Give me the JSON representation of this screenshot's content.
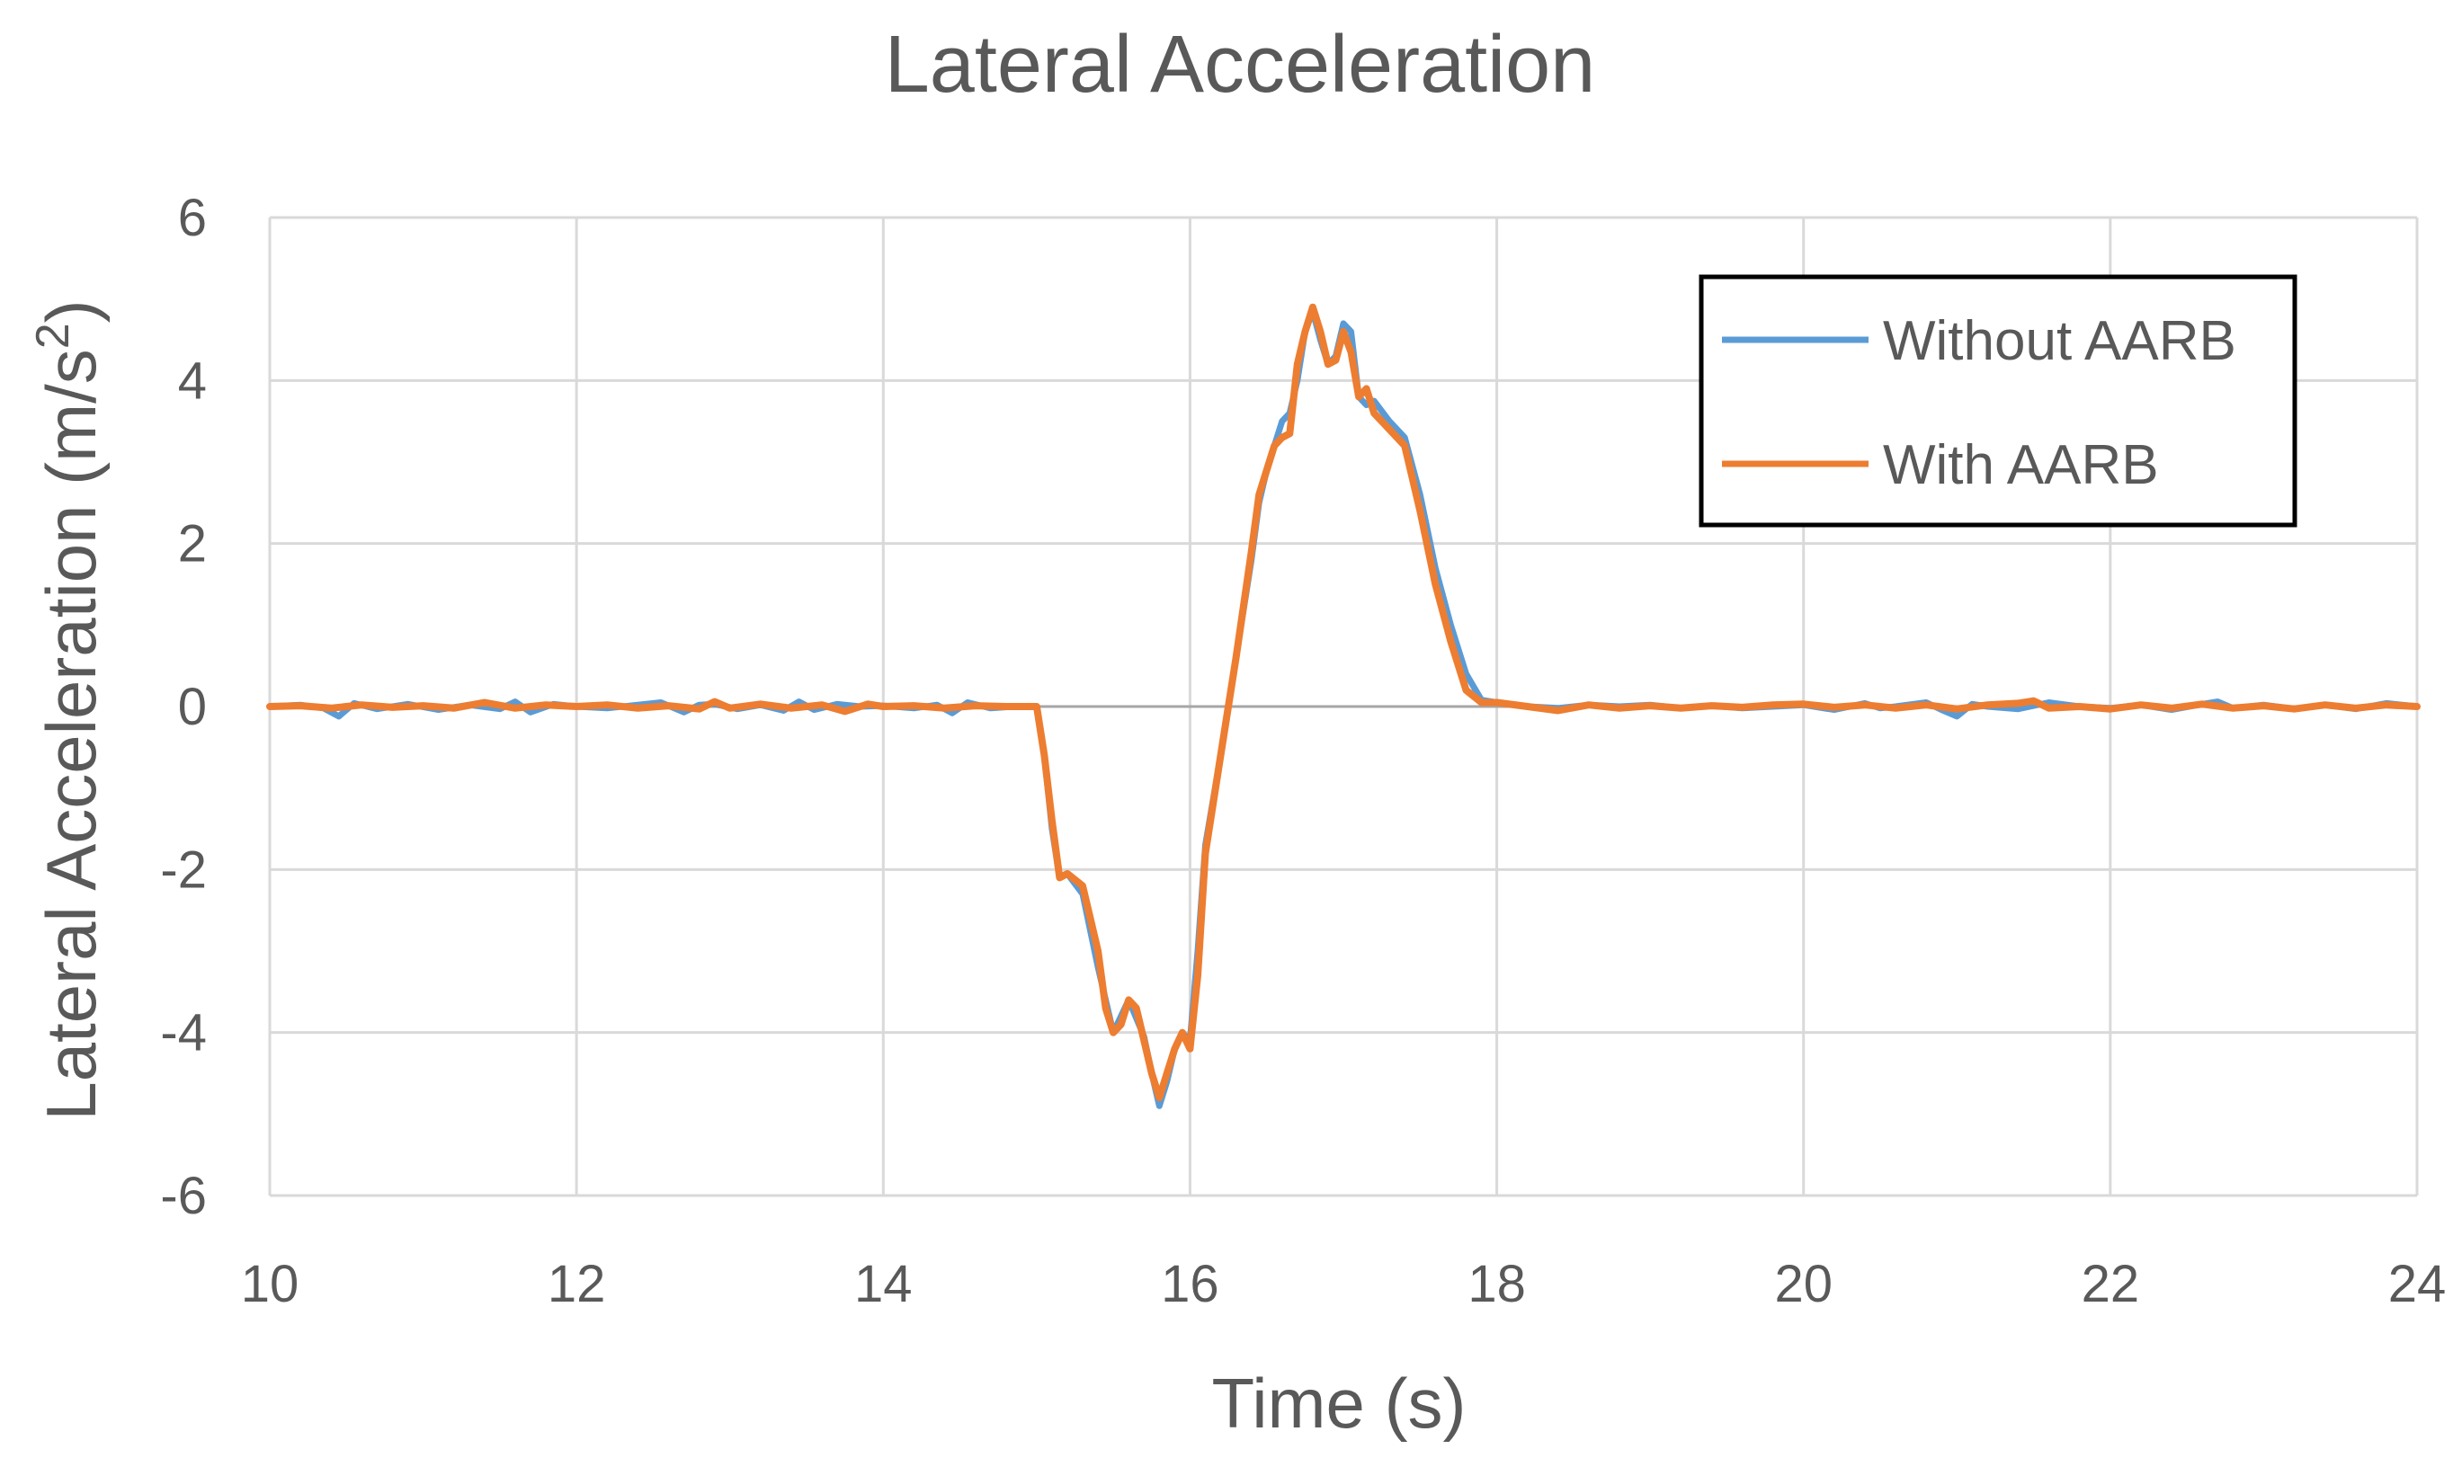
{
  "chart_data": {
    "type": "line",
    "title": "Lateral Acceleration",
    "xlabel": "Time (s)",
    "ylabel": "Lateral Acceleration (m/s",
    "ylabel_sup": "2",
    "ylabel_end": ")",
    "xlim": [
      10,
      24
    ],
    "ylim": [
      -6,
      6
    ],
    "xticks": [
      10,
      12,
      14,
      16,
      18,
      20,
      22,
      24
    ],
    "yticks": [
      -6,
      -4,
      -2,
      0,
      2,
      4,
      6
    ],
    "grid": true,
    "legend_position": "top-right",
    "series": [
      {
        "name": "Without AARB",
        "color": "#5B9BD5",
        "x": [
          10,
          10.2,
          10.35,
          10.45,
          10.55,
          10.7,
          10.9,
          11.1,
          11.3,
          11.5,
          11.6,
          11.7,
          11.85,
          12.0,
          12.2,
          12.4,
          12.55,
          12.7,
          12.8,
          12.9,
          13.05,
          13.2,
          13.35,
          13.45,
          13.55,
          13.7,
          13.85,
          14.0,
          14.2,
          14.35,
          14.45,
          14.55,
          14.7,
          14.85,
          15.0,
          15.05,
          15.1,
          15.15,
          15.2,
          15.3,
          15.4,
          15.5,
          15.6,
          15.7,
          15.75,
          15.8,
          15.85,
          15.9,
          15.95,
          16.0,
          16.05,
          16.1,
          16.2,
          16.3,
          16.4,
          16.45,
          16.5,
          16.55,
          16.6,
          16.65,
          16.7,
          16.75,
          16.8,
          16.85,
          16.9,
          16.95,
          17.0,
          17.05,
          17.1,
          17.15,
          17.2,
          17.3,
          17.4,
          17.5,
          17.6,
          17.7,
          17.8,
          17.9,
          18.0,
          18.2,
          18.4,
          18.6,
          18.8,
          19.0,
          19.2,
          19.4,
          19.6,
          19.8,
          20.0,
          20.2,
          20.4,
          20.5,
          20.6,
          20.8,
          20.9,
          21.0,
          21.1,
          21.2,
          21.4,
          21.6,
          21.8,
          22.0,
          22.2,
          22.4,
          22.6,
          22.7,
          22.8,
          23.0,
          23.2,
          23.4,
          23.6,
          23.8,
          24.0
        ],
        "y": [
          0.0,
          0.02,
          -0.02,
          -0.12,
          0.04,
          -0.03,
          0.03,
          -0.04,
          0.02,
          -0.03,
          0.06,
          -0.07,
          0.03,
          0.0,
          -0.02,
          0.02,
          0.05,
          -0.07,
          0.02,
          0.03,
          -0.03,
          0.02,
          -0.05,
          0.06,
          -0.04,
          0.03,
          0.0,
          0.01,
          -0.02,
          0.02,
          -0.08,
          0.05,
          -0.02,
          0.0,
          0.0,
          -0.6,
          -1.5,
          -2.1,
          -2.05,
          -2.3,
          -3.2,
          -4.0,
          -3.6,
          -4.05,
          -4.5,
          -4.9,
          -4.6,
          -4.2,
          -4.0,
          -4.1,
          -3.0,
          -1.7,
          -0.6,
          0.6,
          1.8,
          2.5,
          2.9,
          3.2,
          3.5,
          3.6,
          4.0,
          4.6,
          4.85,
          4.5,
          4.2,
          4.3,
          4.7,
          4.6,
          3.8,
          3.7,
          3.75,
          3.5,
          3.3,
          2.6,
          1.7,
          1.0,
          0.4,
          0.08,
          0.05,
          0.0,
          -0.02,
          0.02,
          0.0,
          0.02,
          -0.02,
          0.01,
          -0.02,
          0.0,
          0.02,
          -0.04,
          0.04,
          -0.02,
          0.0,
          0.05,
          -0.04,
          -0.12,
          0.03,
          0.0,
          -0.03,
          0.05,
          0.0,
          -0.02,
          0.02,
          -0.04,
          0.03,
          0.06,
          -0.02,
          0.02,
          -0.03,
          0.02,
          -0.03,
          0.04,
          0.0
        ],
        "values_estimated": true
      },
      {
        "name": "With AARB",
        "color": "#ED7D31",
        "x": [
          10,
          10.2,
          10.4,
          10.6,
          10.8,
          11.0,
          11.2,
          11.4,
          11.6,
          11.8,
          12.0,
          12.2,
          12.4,
          12.6,
          12.8,
          12.9,
          13.0,
          13.2,
          13.4,
          13.6,
          13.75,
          13.9,
          14.0,
          14.2,
          14.4,
          14.6,
          14.8,
          15.0,
          15.05,
          15.1,
          15.15,
          15.2,
          15.3,
          15.4,
          15.45,
          15.5,
          15.55,
          15.6,
          15.65,
          15.7,
          15.75,
          15.8,
          15.85,
          15.9,
          15.95,
          16.0,
          16.05,
          16.1,
          16.2,
          16.3,
          16.4,
          16.45,
          16.5,
          16.55,
          16.6,
          16.65,
          16.7,
          16.75,
          16.8,
          16.85,
          16.9,
          16.95,
          17.0,
          17.05,
          17.1,
          17.15,
          17.2,
          17.3,
          17.4,
          17.5,
          17.6,
          17.7,
          17.8,
          17.9,
          18.0,
          18.2,
          18.4,
          18.6,
          18.8,
          19.0,
          19.2,
          19.4,
          19.6,
          19.8,
          20.0,
          20.2,
          20.4,
          20.6,
          20.8,
          21.0,
          21.2,
          21.4,
          21.5,
          21.6,
          21.8,
          22.0,
          22.2,
          22.4,
          22.6,
          22.8,
          23.0,
          23.2,
          23.4,
          23.6,
          23.8,
          24.0
        ],
        "y": [
          0.0,
          0.01,
          -0.02,
          0.02,
          -0.01,
          0.01,
          -0.02,
          0.05,
          -0.02,
          0.02,
          0.0,
          0.02,
          -0.02,
          0.01,
          -0.03,
          0.06,
          -0.02,
          0.03,
          -0.02,
          0.02,
          -0.06,
          0.03,
          0.0,
          0.01,
          -0.02,
          0.01,
          0.0,
          0.0,
          -0.6,
          -1.4,
          -2.1,
          -2.05,
          -2.2,
          -3.0,
          -3.7,
          -4.0,
          -3.9,
          -3.6,
          -3.7,
          -4.1,
          -4.5,
          -4.8,
          -4.5,
          -4.2,
          -4.0,
          -4.2,
          -3.3,
          -1.8,
          -0.6,
          0.6,
          1.9,
          2.6,
          2.9,
          3.2,
          3.3,
          3.35,
          4.2,
          4.6,
          4.9,
          4.6,
          4.2,
          4.25,
          4.6,
          4.35,
          3.8,
          3.9,
          3.6,
          3.4,
          3.2,
          2.4,
          1.5,
          0.8,
          0.2,
          0.05,
          0.05,
          0.0,
          -0.05,
          0.02,
          -0.02,
          0.01,
          -0.02,
          0.01,
          -0.01,
          0.02,
          0.03,
          -0.01,
          0.02,
          -0.02,
          0.02,
          -0.03,
          0.02,
          0.04,
          0.07,
          -0.02,
          0.0,
          -0.03,
          0.02,
          -0.02,
          0.03,
          -0.02,
          0.01,
          -0.03,
          0.02,
          -0.02,
          0.02,
          0.0
        ],
        "values_estimated": true
      }
    ]
  }
}
